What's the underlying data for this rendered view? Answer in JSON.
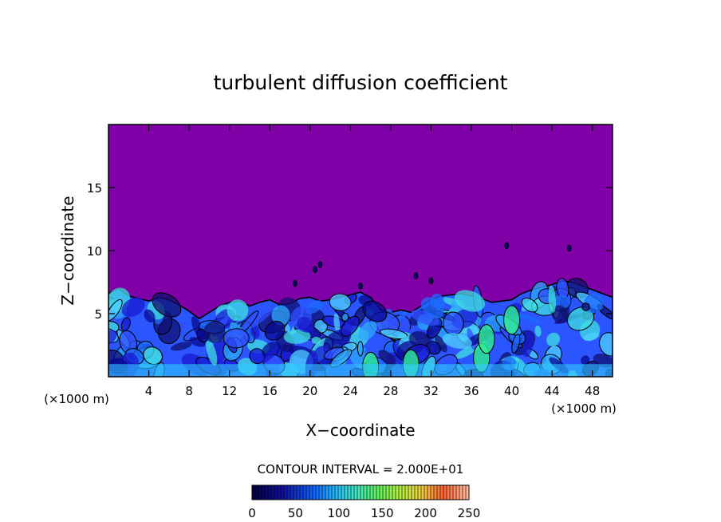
{
  "chart_data": {
    "type": "heatmap",
    "title": "turbulent diffusion coefficient",
    "xlabel": "X−coordinate",
    "ylabel": "Z−coordinate",
    "x_unit_left": "(×1000 m)",
    "x_unit_right": "(×1000 m)",
    "xlim": [
      0,
      50
    ],
    "ylim": [
      0,
      20
    ],
    "x_ticks": [
      4,
      8,
      12,
      16,
      20,
      24,
      28,
      32,
      36,
      40,
      44,
      48
    ],
    "x_tick_labels": [
      "4",
      "8",
      "12",
      "16",
      "20",
      "24",
      "28",
      "32",
      "36",
      "40",
      "44",
      "48"
    ],
    "y_ticks": [
      5,
      10,
      15
    ],
    "y_tick_labels": [
      "5",
      "10",
      "15"
    ],
    "contour_interval_text": "CONTOUR INTERVAL = 2.000E+01",
    "colorbar": {
      "min": 0,
      "max": 250,
      "ticks": [
        0,
        50,
        100,
        150,
        200,
        250
      ],
      "tick_labels": [
        "0",
        "50",
        "100",
        "150",
        "200",
        "250"
      ]
    },
    "background_value": 0,
    "boundary_layer_top_profile": [
      [
        0,
        6.6
      ],
      [
        1,
        7.0
      ],
      [
        2,
        6.4
      ],
      [
        3,
        6.2
      ],
      [
        4,
        6.0
      ],
      [
        5,
        6.3
      ],
      [
        6,
        6.1
      ],
      [
        7,
        5.7
      ],
      [
        8,
        5.2
      ],
      [
        9,
        4.6
      ],
      [
        10,
        5.1
      ],
      [
        11,
        5.6
      ],
      [
        12,
        5.9
      ],
      [
        13,
        6.0
      ],
      [
        14,
        5.6
      ],
      [
        15,
        5.9
      ],
      [
        16,
        6.1
      ],
      [
        17,
        5.7
      ],
      [
        18,
        5.8
      ],
      [
        19,
        6.2
      ],
      [
        20,
        6.3
      ],
      [
        21,
        6.0
      ],
      [
        22,
        6.1
      ],
      [
        23,
        6.3
      ],
      [
        24,
        6.5
      ],
      [
        25,
        6.7
      ],
      [
        26,
        6.3
      ],
      [
        27,
        5.3
      ],
      [
        28,
        5.1
      ],
      [
        29,
        5.3
      ],
      [
        30,
        5.1
      ],
      [
        31,
        5.6
      ],
      [
        32,
        6.1
      ],
      [
        33,
        6.4
      ],
      [
        34,
        6.5
      ],
      [
        35,
        6.6
      ],
      [
        36,
        6.4
      ],
      [
        37,
        6.2
      ],
      [
        38,
        5.9
      ],
      [
        39,
        6.0
      ],
      [
        40,
        6.1
      ],
      [
        41,
        6.6
      ],
      [
        42,
        6.9
      ],
      [
        43,
        7.1
      ],
      [
        44,
        7.3
      ],
      [
        45,
        7.6
      ],
      [
        46,
        7.5
      ],
      [
        47,
        7.2
      ],
      [
        48,
        6.9
      ],
      [
        49,
        6.6
      ],
      [
        50,
        6.3
      ]
    ],
    "colors": {
      "background_field": "#8000a8",
      "frame": "#000000",
      "text": "#000000"
    }
  }
}
